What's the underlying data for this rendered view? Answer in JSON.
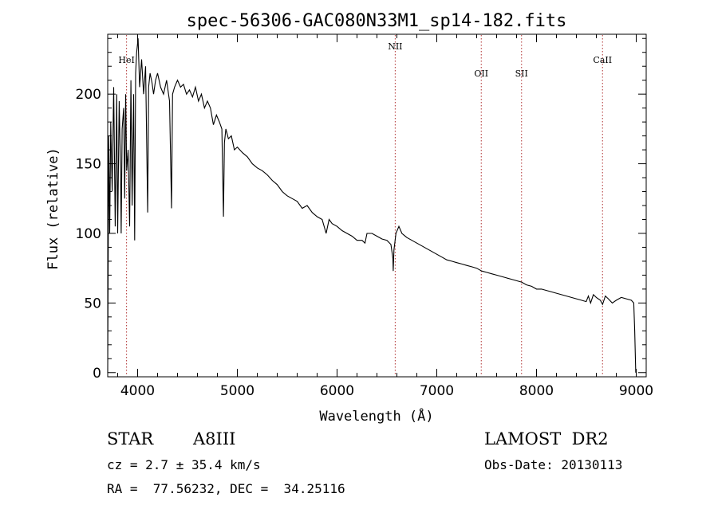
{
  "chart_data": {
    "type": "line",
    "title": "spec-56306-GAC080N33M1_sp14-182.fits",
    "xlabel": "Wavelength (Å)",
    "ylabel": "Flux (relative)",
    "xlim": [
      3700,
      9100
    ],
    "ylim": [
      -3,
      243
    ],
    "xticks": [
      4000,
      5000,
      6000,
      7000,
      8000,
      9000
    ],
    "yticks": [
      0,
      50,
      100,
      150,
      200
    ],
    "emission_lines": [
      {
        "name": "HeI",
        "wavelength": 3889
      },
      {
        "name": "NII",
        "wavelength": 6583
      },
      {
        "name": "OII",
        "wavelength": 7446
      },
      {
        "name": "SII",
        "wavelength": 7850
      },
      {
        "name": "CaII",
        "wavelength": 8662
      }
    ],
    "series": [
      {
        "name": "spectrum",
        "x": [
          3700,
          3710,
          3720,
          3730,
          3745,
          3760,
          3775,
          3790,
          3800,
          3815,
          3830,
          3835,
          3845,
          3860,
          3870,
          3880,
          3890,
          3905,
          3920,
          3933,
          3945,
          3960,
          3970,
          3980,
          3990,
          4005,
          4020,
          4040,
          4060,
          4080,
          4101,
          4110,
          4125,
          4145,
          4160,
          4180,
          4200,
          4230,
          4260,
          4290,
          4320,
          4340,
          4350,
          4370,
          4400,
          4430,
          4460,
          4490,
          4520,
          4550,
          4580,
          4610,
          4640,
          4670,
          4700,
          4730,
          4760,
          4790,
          4820,
          4845,
          4861,
          4870,
          4885,
          4910,
          4940,
          4970,
          5000,
          5050,
          5100,
          5150,
          5200,
          5250,
          5300,
          5350,
          5400,
          5450,
          5500,
          5550,
          5600,
          5650,
          5700,
          5750,
          5800,
          5850,
          5890,
          5920,
          5950,
          6000,
          6050,
          6100,
          6150,
          6200,
          6250,
          6280,
          6300,
          6350,
          6400,
          6450,
          6500,
          6540,
          6560,
          6563,
          6570,
          6590,
          6620,
          6650,
          6700,
          6750,
          6800,
          6850,
          6900,
          6950,
          7000,
          7050,
          7100,
          7150,
          7200,
          7250,
          7300,
          7350,
          7400,
          7450,
          7500,
          7550,
          7600,
          7650,
          7700,
          7750,
          7800,
          7850,
          7900,
          7950,
          8000,
          8050,
          8100,
          8150,
          8200,
          8250,
          8300,
          8350,
          8400,
          8450,
          8498,
          8520,
          8542,
          8570,
          8600,
          8640,
          8662,
          8690,
          8720,
          8760,
          8800,
          8850,
          8900,
          8950,
          8975,
          8985,
          8995
        ],
        "y": [
          0,
          170,
          100,
          180,
          130,
          205,
          105,
          200,
          100,
          195,
          140,
          100,
          175,
          190,
          125,
          200,
          145,
          160,
          105,
          210,
          120,
          200,
          95,
          215,
          230,
          240,
          205,
          225,
          200,
          220,
          115,
          205,
          215,
          208,
          200,
          210,
          215,
          205,
          200,
          210,
          195,
          118,
          200,
          205,
          210,
          205,
          207,
          200,
          203,
          198,
          205,
          195,
          200,
          190,
          195,
          190,
          178,
          185,
          180,
          175,
          112,
          165,
          175,
          168,
          170,
          160,
          162,
          158,
          155,
          150,
          147,
          145,
          142,
          138,
          135,
          130,
          127,
          125,
          123,
          118,
          120,
          115,
          112,
          110,
          100,
          110,
          107,
          105,
          102,
          100,
          98,
          95,
          95,
          93,
          100,
          100,
          98,
          96,
          95,
          92,
          82,
          73,
          88,
          100,
          105,
          100,
          97,
          95,
          93,
          91,
          89,
          87,
          85,
          83,
          81,
          80,
          79,
          78,
          77,
          76,
          75,
          73,
          72,
          71,
          70,
          69,
          68,
          67,
          66,
          65,
          63,
          62,
          60,
          60,
          59,
          58,
          57,
          56,
          55,
          54,
          53,
          52,
          51,
          55,
          50,
          56,
          54,
          52,
          49,
          55,
          53,
          50,
          52,
          54,
          53,
          52,
          50,
          30,
          0
        ]
      }
    ]
  },
  "footer": {
    "object_type": "STAR",
    "spectral_class": "A8III",
    "survey": "LAMOST  DR2",
    "redshift": "cz = 2.7 ± 35.4 km/s",
    "obs_date": "Obs-Date: 20130113",
    "coords": "RA =  77.56232, DEC =  34.25116"
  },
  "colors": {
    "spectrum": "#000000",
    "line_marker": "#b03030",
    "axis": "#000000"
  }
}
